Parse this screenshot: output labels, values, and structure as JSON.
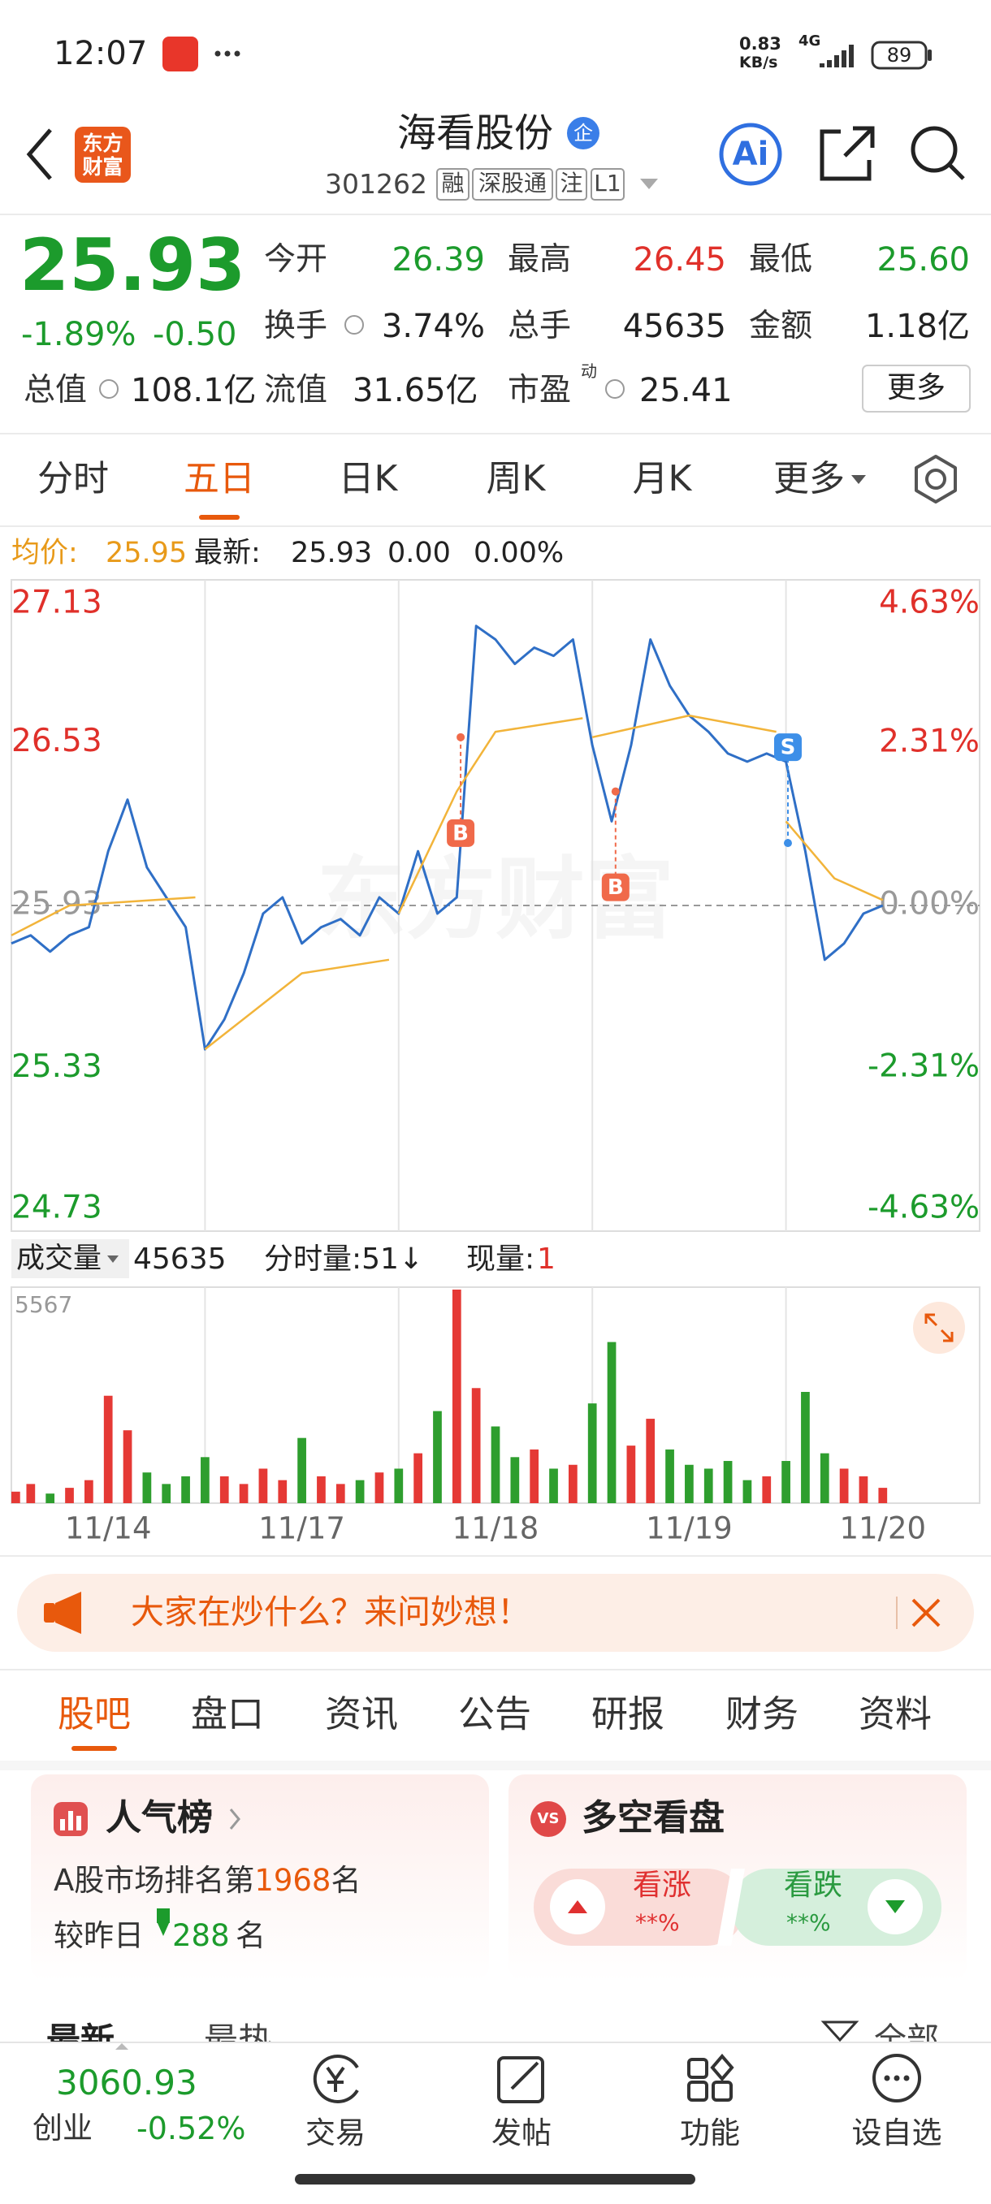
{
  "status_bar": {
    "time": "12:07",
    "net_speed": "0.83",
    "net_unit": "KB/s",
    "network": "4G",
    "battery": "89"
  },
  "header": {
    "logo": [
      "东方",
      "财富"
    ],
    "title": "海看股份",
    "badge": "企",
    "code": "301262",
    "tags": [
      "融",
      "深股通",
      "注",
      "L1"
    ],
    "ai": "Ai"
  },
  "quote": {
    "price": "25.93",
    "change_pct": "-1.89%",
    "change": "-0.50",
    "stats": [
      {
        "label": "今开",
        "value": "26.39",
        "color": "#1c9b2c"
      },
      {
        "label": "最高",
        "value": "26.45",
        "color": "#e0302a"
      },
      {
        "label": "最低",
        "value": "25.60",
        "color": "#1c9b2c"
      },
      {
        "label": "换手",
        "value": "3.74%"
      },
      {
        "label": "总手",
        "value": "45635"
      },
      {
        "label": "金额",
        "value": "1.18亿"
      },
      {
        "label": "总值",
        "value": "108.1亿"
      },
      {
        "label": "流值",
        "value": "31.65亿"
      },
      {
        "label": "市盈",
        "value": "25.41",
        "sup": "动"
      }
    ],
    "more": "更多"
  },
  "tabs": {
    "items": [
      "分时",
      "五日",
      "日K",
      "周K",
      "月K",
      "更多"
    ],
    "active": 1
  },
  "summary": {
    "avg_label": "均价:",
    "avg": "25.95",
    "latest_label": "最新:",
    "latest": "25.93",
    "change": "0.00",
    "change_pct": "0.00%"
  },
  "volume_header": {
    "selector": "成交量",
    "total": "45635",
    "per_minute": "分时量:51↓",
    "current_label": "现量:",
    "current": "1"
  },
  "chart_data": [
    {
      "type": "line",
      "watermark": "东方财富",
      "xlim": [
        0,
        5
      ],
      "xticks": [
        {
          "value": 0.5,
          "label": "11/14"
        },
        {
          "value": 1.5,
          "label": "11/17"
        },
        {
          "value": 2.5,
          "label": "11/18"
        },
        {
          "value": 3.5,
          "label": "11/19"
        },
        {
          "value": 4.5,
          "label": "11/20"
        }
      ],
      "xgrid": [
        1,
        2,
        3,
        4
      ],
      "ylim": [
        24.73,
        27.13
      ],
      "yticks": [
        27.13,
        26.53,
        25.93,
        25.33,
        24.73
      ],
      "y2lim": [
        -4.63,
        4.63
      ],
      "y2ticks": [
        {
          "value": 4.63,
          "label": "4.63%"
        },
        {
          "value": 2.31,
          "label": "2.31%"
        },
        {
          "value": 0,
          "label": "0.00%"
        },
        {
          "value": -2.31,
          "label": "-2.31%"
        },
        {
          "value": -4.63,
          "label": "-4.63%"
        }
      ],
      "series": [
        {
          "color": "#2f6fc6",
          "x": [
            0,
            0.1,
            0.2,
            0.3,
            0.4,
            0.5,
            0.6,
            0.7,
            0.8,
            0.9,
            1,
            1.1,
            1.2,
            1.3,
            1.4,
            1.5,
            1.6,
            1.7,
            1.8,
            1.9,
            2,
            2.1,
            2.2,
            2.3,
            2.4,
            2.5,
            2.6,
            2.7,
            2.8,
            2.9,
            3,
            3.1,
            3.2,
            3.3,
            3.4,
            3.5,
            3.6,
            3.7,
            3.8,
            3.9,
            4,
            4.1,
            4.2,
            4.3,
            4.4,
            4.5
          ],
          "values": [
            25.79,
            25.82,
            25.76,
            25.82,
            25.85,
            26.13,
            26.32,
            26.07,
            25.96,
            25.85,
            25.4,
            25.51,
            25.68,
            25.9,
            25.96,
            25.79,
            25.85,
            25.88,
            25.82,
            25.96,
            25.9,
            26.13,
            25.9,
            25.96,
            26.96,
            26.91,
            26.82,
            26.88,
            26.85,
            26.91,
            26.52,
            26.24,
            26.52,
            26.91,
            26.74,
            26.63,
            26.57,
            26.49,
            26.46,
            26.49,
            26.46,
            26.13,
            25.73,
            25.79,
            25.9,
            25.93
          ]
        },
        {
          "color": "#f2b43a",
          "x": [
            0,
            0.3,
            0.95,
            0.975,
            1,
            1.5,
            1.95,
            1.975,
            2,
            2.3,
            2.5,
            2.95,
            2.975,
            3,
            3.5,
            3.95,
            3.975,
            4,
            4.25,
            4.5
          ],
          "values": [
            25.82,
            25.93,
            25.96,
            null,
            25.4,
            25.68,
            25.73,
            null,
            25.9,
            26.35,
            26.57,
            26.62,
            null,
            26.55,
            26.63,
            26.57,
            null,
            26.24,
            26.03,
            25.95
          ]
        }
      ],
      "annotations": [
        {
          "text": "B",
          "x": 2.32,
          "y": 26.55,
          "placement": "below",
          "color": "#f06a4a"
        },
        {
          "text": "B",
          "x": 3.12,
          "y": 26.35,
          "placement": "below",
          "color": "#f06a4a"
        },
        {
          "text": "S",
          "x": 4.01,
          "y": 26.16,
          "placement": "above",
          "color": "#3d8fe8"
        }
      ]
    },
    {
      "type": "bar",
      "up_color": "#e53935",
      "down_color": "#2e9e2e",
      "ylim": [
        0,
        5567
      ],
      "yticks": [
        5567
      ],
      "x": [
        0,
        0.1,
        0.2,
        0.3,
        0.4,
        0.5,
        0.6,
        0.7,
        0.8,
        0.9,
        1,
        1.1,
        1.2,
        1.3,
        1.4,
        1.5,
        1.6,
        1.7,
        1.8,
        1.9,
        2,
        2.1,
        2.2,
        2.3,
        2.4,
        2.5,
        2.6,
        2.7,
        2.8,
        2.9,
        3,
        3.1,
        3.2,
        3.3,
        3.4,
        3.5,
        3.6,
        3.7,
        3.8,
        3.9,
        4,
        4.1,
        4.2,
        4.3,
        4.4,
        4.5
      ],
      "values": [
        300,
        500,
        250,
        400,
        600,
        2800,
        1900,
        800,
        500,
        700,
        1200,
        700,
        500,
        900,
        600,
        1700,
        700,
        500,
        600,
        800,
        900,
        1300,
        2400,
        5567,
        3000,
        2000,
        1200,
        1400,
        900,
        1000,
        2600,
        4200,
        1500,
        2200,
        1400,
        1000,
        900,
        1100,
        600,
        700,
        1100,
        2900,
        1300,
        900,
        700,
        400
      ]
    }
  ],
  "banner": {
    "text": "大家在炒什么？来问妙想！"
  },
  "section_tabs": {
    "items": [
      "股吧",
      "盘口",
      "资讯",
      "公告",
      "研报",
      "财务",
      "资料"
    ],
    "active": 0
  },
  "popularity": {
    "title": "人气榜",
    "rank_prefix": "A股市场排名第",
    "rank": "1968",
    "rank_suffix": "名",
    "change_prefix": "较昨日",
    "change": "288",
    "change_suffix": "名"
  },
  "sentiment": {
    "icon": "VS",
    "title": "多空看盘",
    "bull": "看涨",
    "bull_pct": "**%",
    "bear": "看跌",
    "bear_pct": "**%"
  },
  "feed_tabs": [
    "最新",
    "最热",
    "全部"
  ],
  "bottom_nav": {
    "index_value": "3060.93",
    "index_name": "创业",
    "index_change": "-0.52%",
    "items": [
      "交易",
      "发帖",
      "功能",
      "设自选"
    ]
  }
}
